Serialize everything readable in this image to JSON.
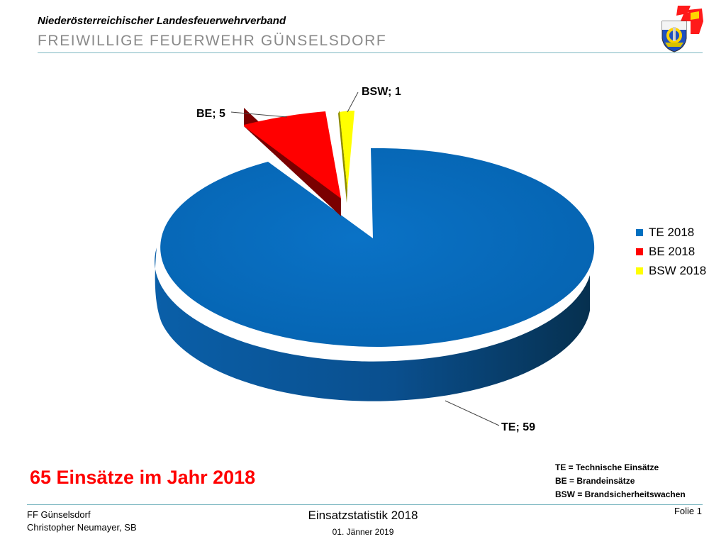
{
  "header": {
    "organization": "Niederösterreichischer Landesfeuerwehrverband",
    "fire_department": "FREIWILLIGE FEUERWEHR GÜNSELSDORF"
  },
  "colors": {
    "TE": "#0070c0",
    "BE": "#ff0000",
    "BSW": "#ffff00",
    "headline": "#ff0000",
    "rule": "#7fb8c2"
  },
  "chart_data": {
    "type": "pie",
    "style": "3d-exploded",
    "categories": [
      "TE",
      "BE",
      "BSW"
    ],
    "values": [
      59,
      5,
      1
    ],
    "data_labels": [
      "TE; 59",
      "BE; 5",
      "BSW; 1"
    ],
    "legend": [
      "TE 2018",
      "BE 2018",
      "BSW 2018"
    ],
    "legend_position": "right"
  },
  "headline": "65 Einsätze im Jahr 2018",
  "abbreviations": [
    "TE = Technische Einsätze",
    "BE = Brandeinsätze",
    "BSW = Brandsicherheitswachen"
  ],
  "footer": {
    "left_line1": "FF Günselsdorf",
    "left_line2": "Christopher Neumayer, SB",
    "title": "Einsatzstatistik 2018",
    "date": "01. Jänner 2019",
    "slide": "Folie 1"
  }
}
